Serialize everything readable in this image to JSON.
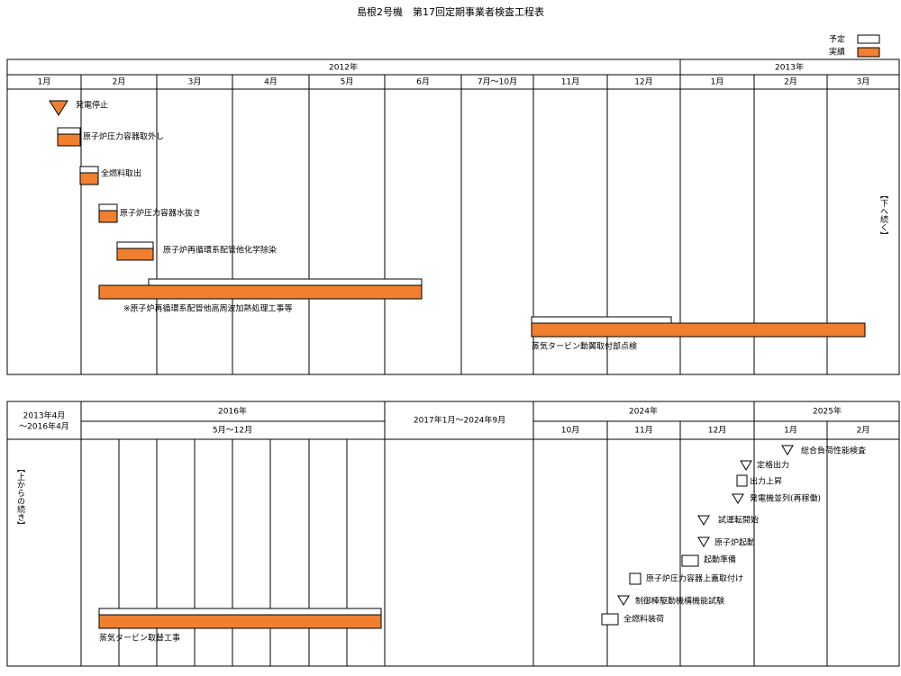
{
  "header": {
    "title": "島根2号機　第17回定期事業者検査工程表"
  },
  "legend": {
    "plan": "予定",
    "actual": "実績"
  },
  "top": {
    "years": [
      "2012年",
      "2013年"
    ],
    "months": [
      "1月",
      "2月",
      "3月",
      "4月",
      "5月",
      "6月",
      "7月～10月",
      "11月",
      "12月",
      "1月",
      "2月",
      "3月"
    ],
    "tasks": [
      "発電停止",
      "原子炉圧力容器取外し",
      "全燃料取出",
      "原子炉圧力容器水抜き",
      "原子炉再循環系配管他化学除染",
      "※原子炉再循環系配管他高周波加熱処理工事等",
      "蒸気タービン動翼取付部点検"
    ],
    "continue_note": "【下へ続く】"
  },
  "bottom": {
    "periods": [
      "2013年4月",
      "～2016年4月",
      "2016年",
      "5月～12月",
      "2017年1月～2024年9月",
      "2024年",
      "2025年"
    ],
    "months": [
      "10月",
      "11月",
      "12月",
      "1月",
      "2月"
    ],
    "tasks": [
      "蒸気タービン取替工事",
      "総合負荷性能検査",
      "定格出力",
      "出力上昇",
      "発電機並列(再稼働)",
      "試運転開始",
      "原子炉起動",
      "起動準備",
      "原子炉圧力容器上蓋取付け",
      "制御棒駆動機構機能試験",
      "全燃料装荷"
    ],
    "continue_note": "【上からの続き】"
  }
}
